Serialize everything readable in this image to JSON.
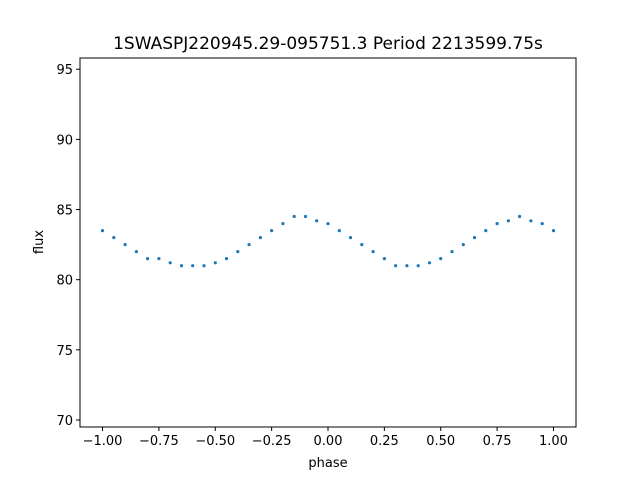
{
  "chart_data": {
    "type": "scatter",
    "title": "1SWASPJ220945.29-095751.3 Period 2213599.75s",
    "xlabel": "phase",
    "ylabel": "flux",
    "xlim": [
      -1.1,
      1.1
    ],
    "ylim": [
      69.5,
      95.8
    ],
    "xticks": [
      -1.0,
      -0.75,
      -0.5,
      -0.25,
      0.0,
      0.25,
      0.5,
      0.75,
      1.0
    ],
    "xtick_labels": [
      "−1.00",
      "−0.75",
      "−0.50",
      "−0.25",
      "0.00",
      "0.25",
      "0.50",
      "0.75",
      "1.00"
    ],
    "yticks": [
      70,
      75,
      80,
      85,
      90,
      95
    ],
    "ytick_labels": [
      "70",
      "75",
      "80",
      "85",
      "90",
      "95"
    ],
    "grid": false,
    "legend": "none",
    "marker_color": "#1f77b4",
    "series": [
      {
        "x": [
          -1.0,
          -0.95,
          -0.9,
          -0.85,
          -0.8,
          -0.75,
          -0.7,
          -0.65,
          -0.6,
          -0.55,
          -0.5,
          -0.45,
          -0.4,
          -0.35,
          -0.3,
          -0.25,
          -0.2,
          -0.15,
          -0.1,
          -0.05,
          0.0,
          0.05,
          0.1,
          0.15,
          0.2,
          0.25,
          0.3,
          0.35,
          0.4,
          0.45,
          0.5,
          0.55,
          0.6,
          0.65,
          0.7,
          0.75,
          0.8,
          0.85,
          0.9,
          0.95,
          1.0
        ],
        "y": [
          83.5,
          83.0,
          82.5,
          82.0,
          81.5,
          81.5,
          81.2,
          81.0,
          81.0,
          81.0,
          81.2,
          81.5,
          82.0,
          82.5,
          83.0,
          83.5,
          84.0,
          84.5,
          84.5,
          84.2,
          84.0,
          83.5,
          83.0,
          82.5,
          82.0,
          81.5,
          81.0,
          81.0,
          81.0,
          81.2,
          81.5,
          82.0,
          82.5,
          83.0,
          83.5,
          84.0,
          84.2,
          84.5,
          84.2,
          84.0,
          83.5
        ]
      }
    ]
  }
}
